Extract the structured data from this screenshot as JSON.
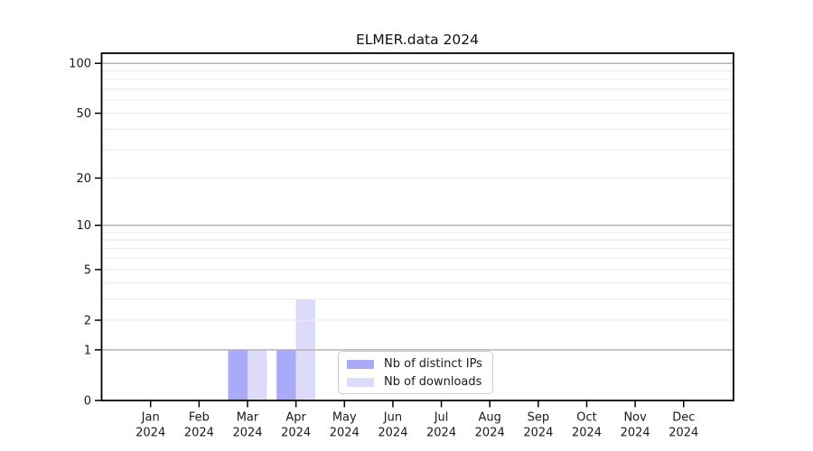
{
  "chart_data": {
    "type": "bar",
    "title": "ELMER.data 2024",
    "categories": [
      "Jan 2024",
      "Feb 2024",
      "Mar 2024",
      "Apr 2024",
      "May 2024",
      "Jun 2024",
      "Jul 2024",
      "Aug 2024",
      "Sep 2024",
      "Oct 2024",
      "Nov 2024",
      "Dec 2024"
    ],
    "x_tick_month": [
      "Jan",
      "Feb",
      "Mar",
      "Apr",
      "May",
      "Jun",
      "Jul",
      "Aug",
      "Sep",
      "Oct",
      "Nov",
      "Dec"
    ],
    "x_tick_year": "2024",
    "series": [
      {
        "name": "Nb of distinct IPs",
        "color": "#aaaaf9",
        "values": [
          0,
          0,
          1,
          1,
          0,
          0,
          0,
          0,
          0,
          0,
          0,
          0
        ]
      },
      {
        "name": "Nb of downloads",
        "color": "#dcdcfa",
        "values": [
          0,
          0,
          1,
          3,
          0,
          0,
          0,
          0,
          0,
          0,
          0,
          0
        ]
      }
    ],
    "xlabel": "",
    "ylabel": "",
    "yscale": "log1p",
    "yticks": [
      0,
      1,
      2,
      5,
      10,
      20,
      50,
      100
    ],
    "ylim": [
      0,
      115
    ],
    "grid": {
      "show": true,
      "orientation": "horizontal",
      "major_at": [
        1,
        10,
        100
      ],
      "minor_at": [
        2,
        3,
        4,
        5,
        6,
        7,
        8,
        9,
        20,
        30,
        40,
        50,
        60,
        70,
        80,
        90
      ],
      "major_color": "#b5b5b5",
      "minor_color": "#ececec"
    },
    "legend": {
      "position": "inside lower-center",
      "labels": [
        "Nb of distinct IPs",
        "Nb of downloads"
      ]
    }
  },
  "colors": {
    "background": "#ffffff",
    "axis": "#000000",
    "tick_text": "#1a1a1a",
    "legend_border": "#cccccc",
    "bar_distinct_ips": "#aaaaf9",
    "bar_downloads": "#dcdcfa"
  }
}
